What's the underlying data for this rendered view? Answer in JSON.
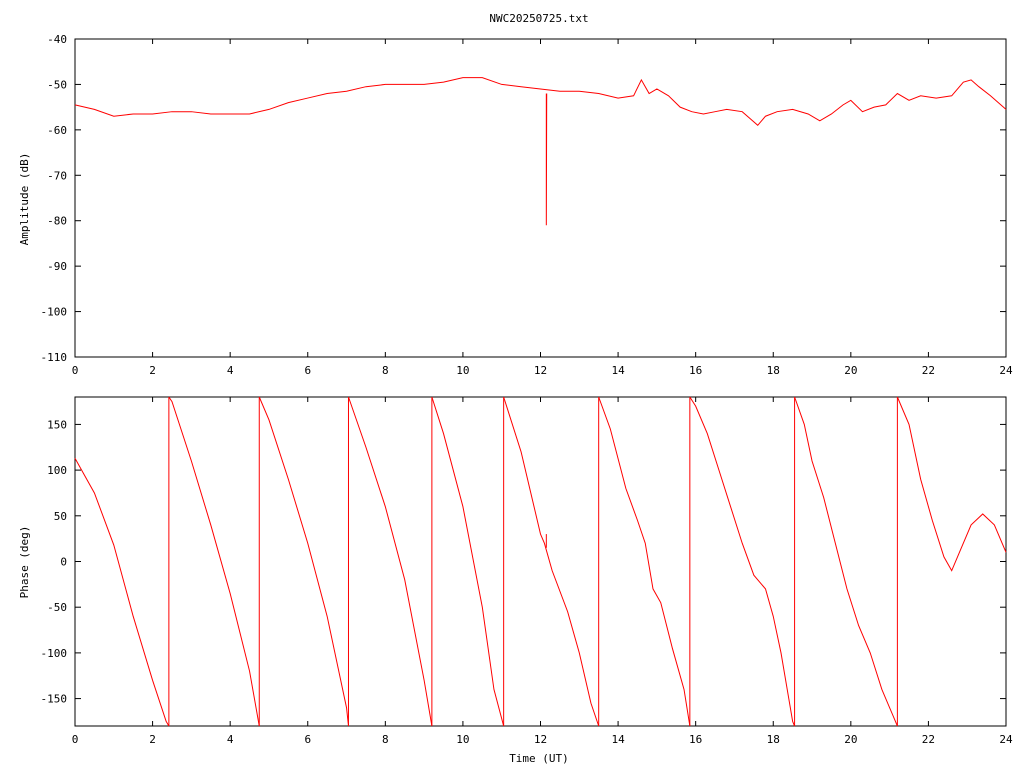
{
  "chart_data": [
    {
      "type": "line",
      "title": "NWC20250725.txt",
      "xlabel": "",
      "ylabel": "Amplitude (dB)",
      "xlim": [
        0,
        24
      ],
      "ylim": [
        -110,
        -40
      ],
      "x_ticks": [
        "0",
        "2",
        "4",
        "6",
        "8",
        "10",
        "12",
        "14",
        "16",
        "18",
        "20",
        "22",
        "24"
      ],
      "y_ticks": [
        "-40",
        "-50",
        "-60",
        "-70",
        "-80",
        "-90",
        "-100",
        "-110"
      ],
      "series_color": "#ff0000",
      "series": [
        {
          "points": [
            [
              0,
              -54.5
            ],
            [
              0.5,
              -55.5
            ],
            [
              1.0,
              -57
            ],
            [
              1.5,
              -56.5
            ],
            [
              2.0,
              -56.5
            ],
            [
              2.5,
              -56
            ],
            [
              3.0,
              -56
            ],
            [
              3.5,
              -56.5
            ],
            [
              4.0,
              -56.5
            ],
            [
              4.5,
              -56.5
            ],
            [
              5.0,
              -55.5
            ],
            [
              5.5,
              -54
            ],
            [
              6.0,
              -53
            ],
            [
              6.5,
              -52
            ],
            [
              7.0,
              -51.5
            ],
            [
              7.5,
              -50.5
            ],
            [
              8.0,
              -50
            ],
            [
              8.5,
              -50
            ],
            [
              9.0,
              -50
            ],
            [
              9.5,
              -49.5
            ],
            [
              10.0,
              -48.5
            ],
            [
              10.5,
              -48.5
            ],
            [
              11.0,
              -50
            ],
            [
              11.5,
              -50.5
            ],
            [
              12.0,
              -51
            ],
            [
              12.5,
              -51.5
            ],
            [
              13.0,
              -51.5
            ],
            [
              13.5,
              -52
            ],
            [
              14.0,
              -53
            ],
            [
              14.4,
              -52.5
            ],
            [
              14.6,
              -49
            ],
            [
              14.8,
              -52
            ],
            [
              15.0,
              -51
            ],
            [
              15.3,
              -52.5
            ],
            [
              15.6,
              -55
            ],
            [
              15.9,
              -56
            ],
            [
              16.2,
              -56.5
            ],
            [
              16.5,
              -56
            ],
            [
              16.8,
              -55.5
            ],
            [
              17.2,
              -56
            ],
            [
              17.4,
              -57.5
            ],
            [
              17.6,
              -59
            ],
            [
              17.8,
              -57
            ],
            [
              18.1,
              -56
            ],
            [
              18.5,
              -55.5
            ],
            [
              18.9,
              -56.5
            ],
            [
              19.2,
              -58
            ],
            [
              19.5,
              -56.5
            ],
            [
              19.8,
              -54.5
            ],
            [
              20.0,
              -53.5
            ],
            [
              20.3,
              -56
            ],
            [
              20.6,
              -55
            ],
            [
              20.9,
              -54.5
            ],
            [
              21.2,
              -52
            ],
            [
              21.5,
              -53.5
            ],
            [
              21.8,
              -52.5
            ],
            [
              22.2,
              -53
            ],
            [
              22.6,
              -52.5
            ],
            [
              22.9,
              -49.5
            ],
            [
              23.1,
              -49
            ],
            [
              23.3,
              -50.5
            ],
            [
              23.6,
              -52.5
            ],
            [
              24.0,
              -55.5
            ]
          ]
        },
        {
          "points": [
            [
              12.15,
              -52
            ],
            [
              12.15,
              -81
            ],
            [
              12.16,
              -52
            ]
          ]
        }
      ]
    },
    {
      "type": "line",
      "title": "",
      "xlabel": "Time (UT)",
      "ylabel": "Phase (deg)",
      "xlim": [
        0,
        24
      ],
      "ylim": [
        -180,
        180
      ],
      "x_ticks": [
        "0",
        "2",
        "4",
        "6",
        "8",
        "10",
        "12",
        "14",
        "16",
        "18",
        "20",
        "22",
        "24"
      ],
      "y_ticks": [
        "150",
        "100",
        "50",
        "0",
        "-50",
        "-100",
        "-150"
      ],
      "series_color": "#ff0000",
      "series": [
        {
          "points": [
            [
              0,
              113
            ],
            [
              0.5,
              75
            ],
            [
              1.0,
              18
            ],
            [
              1.5,
              -60
            ],
            [
              2.0,
              -130
            ],
            [
              2.35,
              -175
            ],
            [
              2.42,
              -180
            ]
          ]
        },
        {
          "points": [
            [
              2.42,
              180
            ],
            [
              2.5,
              175
            ],
            [
              3.0,
              110
            ],
            [
              3.5,
              40
            ],
            [
              4.0,
              -35
            ],
            [
              4.5,
              -120
            ],
            [
              4.75,
              -180
            ]
          ]
        },
        {
          "points": [
            [
              4.75,
              180
            ],
            [
              5.0,
              155
            ],
            [
              5.5,
              90
            ],
            [
              6.0,
              20
            ],
            [
              6.5,
              -60
            ],
            [
              7.0,
              -160
            ],
            [
              7.05,
              -180
            ]
          ]
        },
        {
          "points": [
            [
              7.05,
              180
            ],
            [
              7.5,
              125
            ],
            [
              8.0,
              60
            ],
            [
              8.5,
              -20
            ],
            [
              9.0,
              -130
            ],
            [
              9.2,
              -180
            ]
          ]
        },
        {
          "points": [
            [
              9.2,
              180
            ],
            [
              9.5,
              140
            ],
            [
              10.0,
              60
            ],
            [
              10.5,
              -50
            ],
            [
              10.8,
              -140
            ],
            [
              11.05,
              -180
            ]
          ]
        },
        {
          "points": [
            [
              11.05,
              180
            ],
            [
              11.5,
              120
            ],
            [
              12.0,
              30
            ],
            [
              12.1,
              20
            ],
            [
              12.3,
              -10
            ],
            [
              12.7,
              -55
            ],
            [
              13.0,
              -100
            ],
            [
              13.3,
              -155
            ],
            [
              13.5,
              -180
            ]
          ]
        },
        {
          "points": [
            [
              13.5,
              180
            ],
            [
              13.8,
              145
            ],
            [
              14.2,
              80
            ],
            [
              14.5,
              45
            ],
            [
              14.7,
              20
            ],
            [
              14.9,
              -30
            ],
            [
              15.1,
              -45
            ],
            [
              15.4,
              -95
            ],
            [
              15.7,
              -140
            ],
            [
              15.85,
              -180
            ]
          ]
        },
        {
          "points": [
            [
              15.85,
              180
            ],
            [
              16.0,
              170
            ],
            [
              16.3,
              140
            ],
            [
              16.6,
              100
            ],
            [
              16.9,
              60
            ],
            [
              17.2,
              20
            ],
            [
              17.5,
              -15
            ],
            [
              17.8,
              -30
            ],
            [
              18.0,
              -60
            ],
            [
              18.2,
              -100
            ],
            [
              18.4,
              -150
            ],
            [
              18.5,
              -175
            ],
            [
              18.55,
              -180
            ]
          ]
        },
        {
          "points": [
            [
              18.55,
              180
            ],
            [
              18.8,
              150
            ],
            [
              19.0,
              110
            ],
            [
              19.3,
              70
            ],
            [
              19.6,
              20
            ],
            [
              19.9,
              -30
            ],
            [
              20.2,
              -70
            ],
            [
              20.5,
              -100
            ],
            [
              20.8,
              -140
            ],
            [
              21.1,
              -170
            ],
            [
              21.2,
              -180
            ]
          ]
        },
        {
          "points": [
            [
              21.2,
              180
            ],
            [
              21.5,
              150
            ],
            [
              21.8,
              90
            ],
            [
              22.1,
              45
            ],
            [
              22.4,
              5
            ],
            [
              22.6,
              -10
            ],
            [
              22.8,
              10
            ],
            [
              23.1,
              40
            ],
            [
              23.4,
              52
            ],
            [
              23.7,
              40
            ],
            [
              24.0,
              10
            ]
          ]
        },
        {
          "points": [
            [
              12.15,
              30
            ],
            [
              12.15,
              15
            ]
          ]
        }
      ],
      "vertical_lines": [
        2.42,
        4.75,
        7.05,
        9.2,
        11.05,
        13.5,
        15.85,
        18.55,
        21.2
      ]
    }
  ]
}
